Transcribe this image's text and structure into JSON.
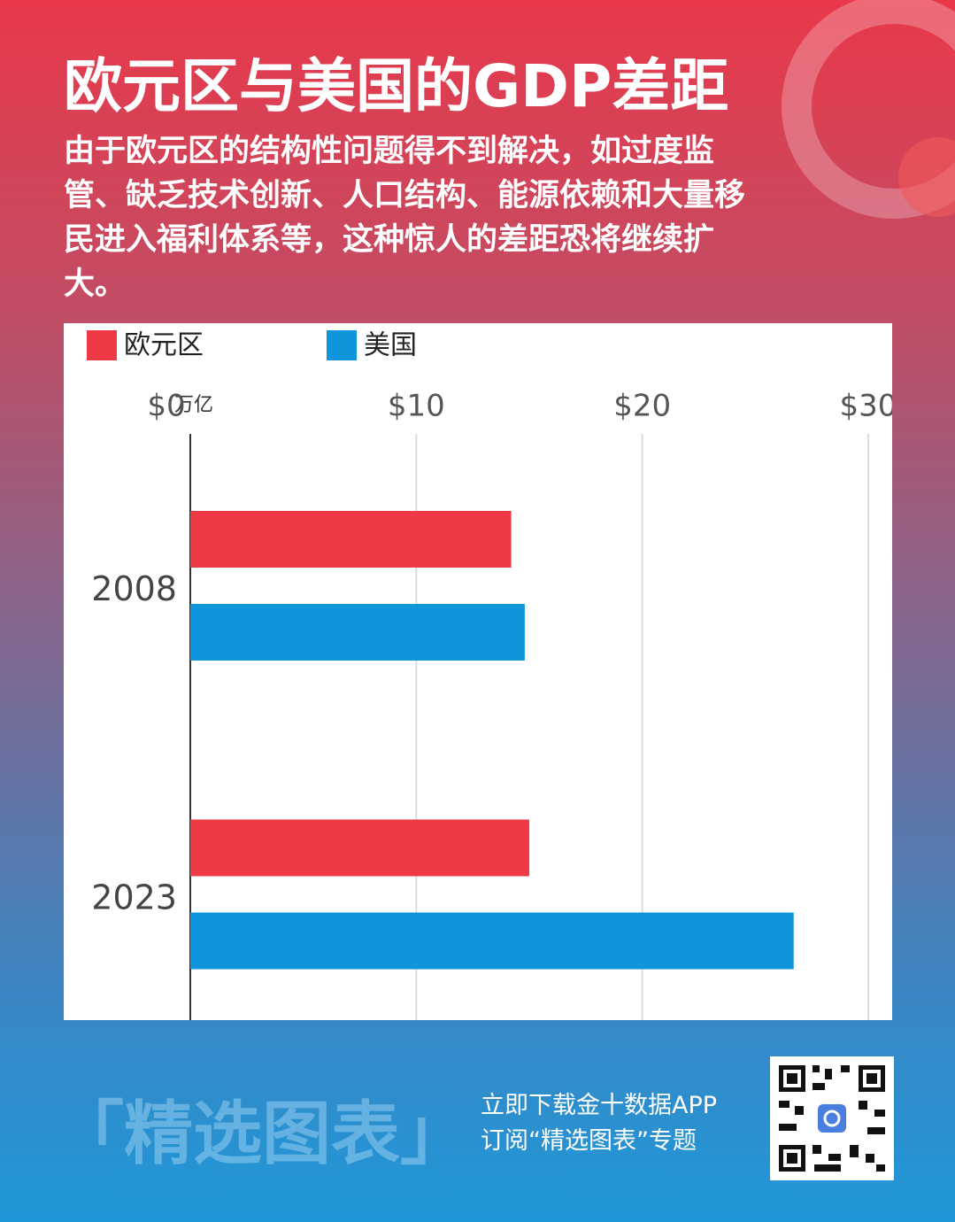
{
  "chart_data": {
    "type": "bar",
    "orientation": "horizontal",
    "title": "欧元区与美国的GDP差距",
    "subtitle": "由于欧元区的结构性问题得不到解决，如过度监管、缺乏技术创新、人口结构、能源依赖和大量移民进入福利体系等，这种惊人的差距恐将继续扩大。",
    "categories": [
      "2008",
      "2023"
    ],
    "series": [
      {
        "name": "欧元区",
        "color": "#ee3a45",
        "values": [
          14.2,
          15.0
        ]
      },
      {
        "name": "美国",
        "color": "#0e95db",
        "values": [
          14.8,
          26.7
        ]
      }
    ],
    "xlim": [
      0,
      30
    ],
    "xticks": [
      {
        "value": 0,
        "label": "$0"
      },
      {
        "value": 10,
        "label": "$10"
      },
      {
        "value": 20,
        "label": "$20"
      },
      {
        "value": 30,
        "label": "$30"
      }
    ],
    "x_unit": "万亿",
    "grid": true,
    "legend": "top-left"
  },
  "footer": {
    "brand": "「精选图表」",
    "line1": "立即下载金十数据APP",
    "line2": "订阅“精选图表”专题"
  }
}
